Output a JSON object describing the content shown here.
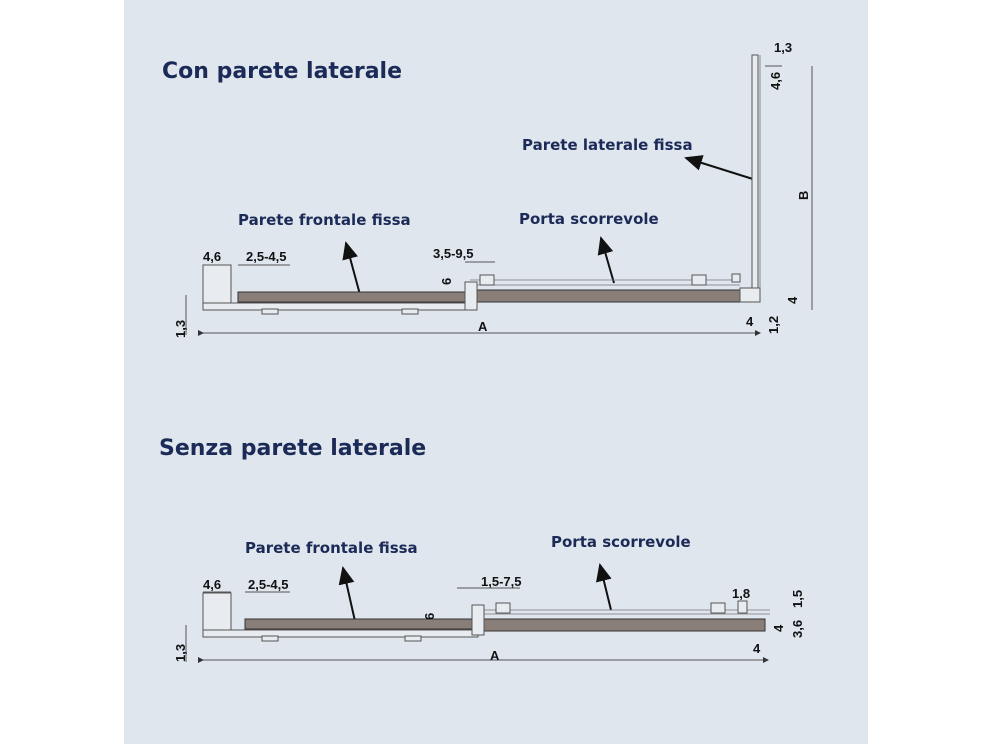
{
  "diagrams": [
    {
      "title": "Con parete laterale",
      "labels": {
        "side_wall": "Parete laterale fissa",
        "front_wall": "Parete frontale fissa",
        "sliding_door": "Porta scorrevole"
      },
      "dimensions": [
        "1,3",
        "4,6",
        "B",
        "4,6",
        "2,5-4,5",
        "3,5-9,5",
        "6",
        "1,3",
        "A",
        "4",
        "1,2",
        "4"
      ]
    },
    {
      "title": "Senza parete laterale",
      "labels": {
        "front_wall": "Parete frontale fissa",
        "sliding_door": "Porta scorrevole"
      },
      "dimensions": [
        "4,6",
        "2,5-4,5",
        "1,5-7,5",
        "6",
        "1,3",
        "A",
        "1,8",
        "1,5",
        "4",
        "3,6",
        "4"
      ]
    }
  ],
  "colors": {
    "background": "#dfe6ee",
    "text": "#1b2a56",
    "glass": "#8a7e78"
  }
}
